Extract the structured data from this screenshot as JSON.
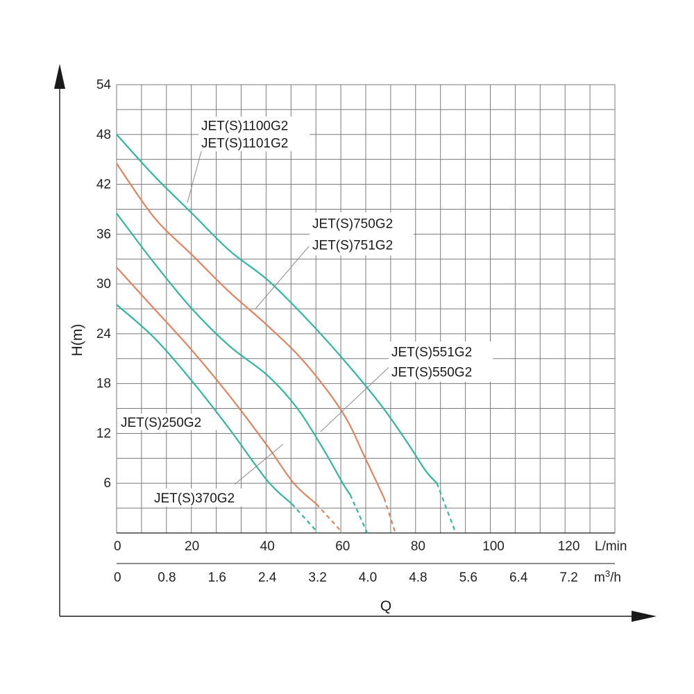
{
  "chart_data": {
    "type": "line",
    "ylabel": "H(m)",
    "xlabel": "Q",
    "yticks": [
      "54",
      "48",
      "42",
      "36",
      "30",
      "24",
      "18",
      "12",
      "6"
    ],
    "ytick_values": [
      54,
      48,
      42,
      36,
      30,
      24,
      18,
      12,
      6
    ],
    "ylim": [
      0,
      54
    ],
    "xlim_lmin": [
      0,
      133
    ],
    "x_lmin_ticks": [
      "0",
      "20",
      "40",
      "60",
      "80",
      "100",
      "120"
    ],
    "x_lmin_values": [
      0,
      20,
      40,
      60,
      80,
      100,
      120
    ],
    "x_lmin_unit": "L/min",
    "x_m3h_ticks": [
      "0",
      "0.8",
      "1.6",
      "2.4",
      "3.2",
      "4.0",
      "4.8",
      "5.6",
      "6.4",
      "7.2"
    ],
    "x_m3h_values": [
      0,
      0.8,
      1.6,
      2.4,
      3.2,
      4.0,
      4.8,
      5.6,
      6.4,
      7.2
    ],
    "x_m3h_unit_base": "m",
    "x_m3h_unit_sup": "3",
    "x_m3h_unit_tail": "/h",
    "grid": true,
    "colors": {
      "teal": "#2fb79d",
      "orange": "#e0835d",
      "grid": "#7a7a7a",
      "axis": "#1a1a1a"
    },
    "series": [
      {
        "color": "teal",
        "points": [
          [
            0,
            27.5
          ],
          [
            10,
            23.5
          ],
          [
            20,
            18.3
          ],
          [
            30,
            12.5
          ],
          [
            40,
            6.3
          ],
          [
            46.5,
            3.5
          ]
        ],
        "dashed": [
          [
            46.5,
            3.5
          ],
          [
            53.5,
            0
          ]
        ]
      },
      {
        "color": "orange",
        "points": [
          [
            0,
            32
          ],
          [
            10,
            27
          ],
          [
            20,
            22
          ],
          [
            30,
            16.5
          ],
          [
            40,
            10.5
          ],
          [
            47,
            6
          ],
          [
            53,
            3.5
          ]
        ],
        "dashed": [
          [
            53,
            3.5
          ],
          [
            60,
            0
          ]
        ]
      },
      {
        "color": "teal",
        "points": [
          [
            0,
            38.5
          ],
          [
            10,
            32.5
          ],
          [
            20,
            27
          ],
          [
            30,
            22.5
          ],
          [
            40,
            19
          ],
          [
            48,
            15
          ],
          [
            55,
            10
          ],
          [
            60,
            6
          ],
          [
            62,
            4.6
          ]
        ],
        "dashed": [
          [
            62,
            4.6
          ],
          [
            66.5,
            0
          ]
        ]
      },
      {
        "color": "orange",
        "points": [
          [
            0,
            44.5
          ],
          [
            10,
            38
          ],
          [
            20,
            33.5
          ],
          [
            30,
            29
          ],
          [
            40,
            25
          ],
          [
            50,
            20.5
          ],
          [
            60,
            14.5
          ],
          [
            66,
            9
          ],
          [
            71,
            4.2
          ]
        ],
        "dashed": [
          [
            71,
            4.2
          ],
          [
            74,
            0
          ]
        ]
      },
      {
        "color": "teal",
        "points": [
          [
            0,
            48
          ],
          [
            10,
            43
          ],
          [
            20,
            38.5
          ],
          [
            30,
            34
          ],
          [
            40,
            30.5
          ],
          [
            50,
            26
          ],
          [
            60,
            21
          ],
          [
            70,
            15.5
          ],
          [
            77,
            11
          ],
          [
            82,
            7.5
          ],
          [
            85,
            6
          ]
        ],
        "dashed": [
          [
            85,
            6
          ],
          [
            90,
            0
          ]
        ]
      }
    ],
    "annotations": [
      {
        "lines": [
          "JET(S)1100G2",
          "JET(S)1101G2"
        ]
      },
      {
        "lines": [
          "JET(S)750G2",
          "JET(S)751G2"
        ]
      },
      {
        "lines": [
          "JET(S)551G2",
          "JET(S)550G2"
        ]
      },
      {
        "lines": [
          "JET(S)250G2"
        ]
      },
      {
        "lines": [
          "JET(S)370G2"
        ]
      }
    ]
  }
}
